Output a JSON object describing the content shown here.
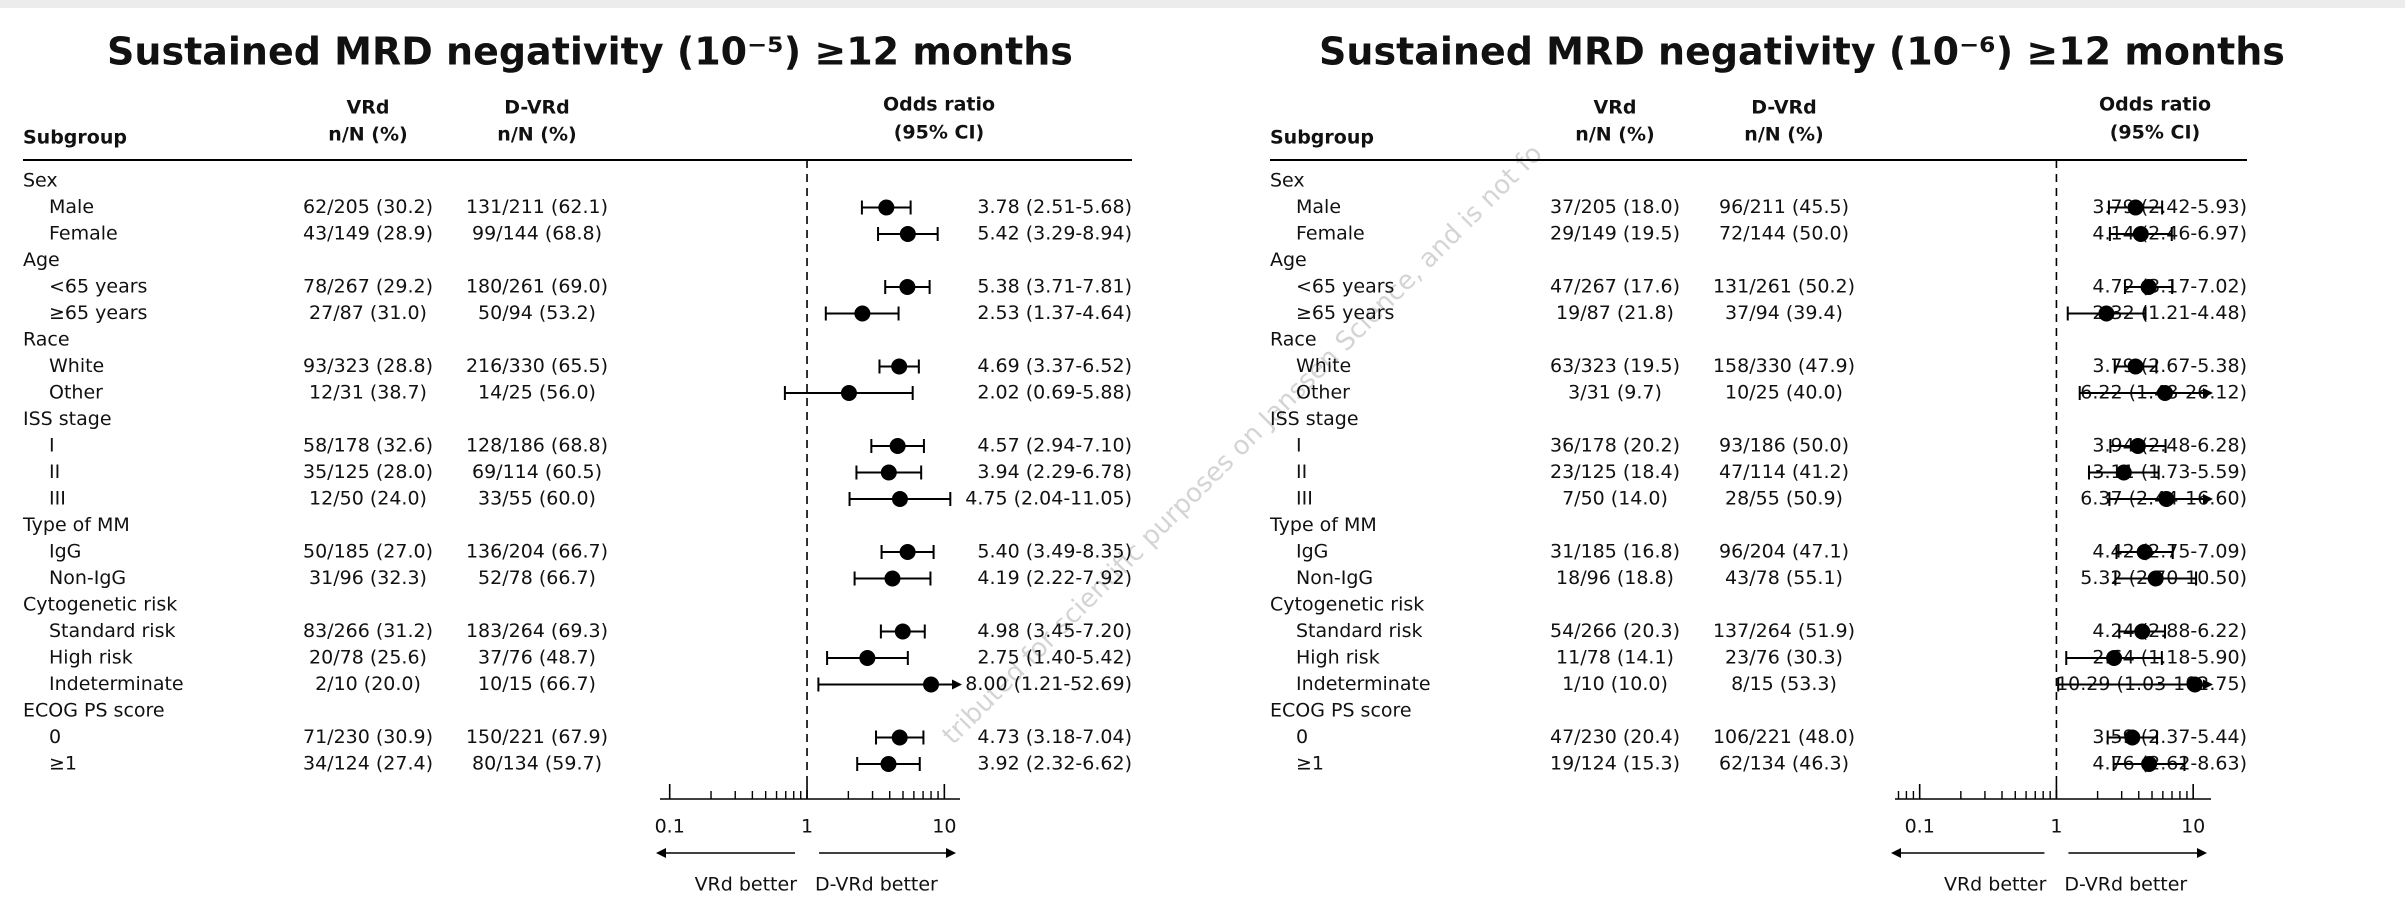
{
  "watermark": "tributed for scientific purposes on Janssen Science, and is not fo",
  "chart_data": [
    {
      "type": "forest",
      "title": "Sustained MRD negativity (10⁻⁵) ≥12 months",
      "headers": {
        "subgroup": "Subgroup",
        "arm1": "VRd",
        "arm1_sub": "n/N (%)",
        "arm2": "D-VRd",
        "arm2_sub": "n/N (%)",
        "effect": "Odds ratio",
        "effect_sub": "(95% CI)"
      },
      "categories": [
        "Sex",
        "Male",
        "Female",
        "Age",
        "<65 years",
        "≥65 years",
        "Race",
        "White",
        "Other",
        "ISS stage",
        "I",
        "II",
        "III",
        "Type of MM",
        "IgG",
        "Non-IgG",
        "Cytogenetic risk",
        "Standard risk",
        "High risk",
        "Indeterminate",
        "ECOG PS score",
        "0",
        "≥1"
      ],
      "arm1": [
        null,
        "62/205 (30.2)",
        "43/149 (28.9)",
        null,
        "78/267 (29.2)",
        "27/87 (31.0)",
        null,
        "93/323 (28.8)",
        "12/31 (38.7)",
        null,
        "58/178 (32.6)",
        "35/125 (28.0)",
        "12/50 (24.0)",
        null,
        "50/185 (27.0)",
        "31/96 (32.3)",
        null,
        "83/266 (31.2)",
        "20/78 (25.6)",
        "2/10 (20.0)",
        null,
        "71/230 (30.9)",
        "34/124 (27.4)"
      ],
      "arm2": [
        null,
        "131/211 (62.1)",
        "99/144 (68.8)",
        null,
        "180/261 (69.0)",
        "50/94 (53.2)",
        null,
        "216/330 (65.5)",
        "14/25 (56.0)",
        null,
        "128/186 (68.8)",
        "69/114 (60.5)",
        "33/55 (60.0)",
        null,
        "136/204 (66.7)",
        "52/78 (66.7)",
        null,
        "183/264 (69.3)",
        "37/76 (48.7)",
        "10/15 (66.7)",
        null,
        "150/221 (67.9)",
        "80/134 (59.7)"
      ],
      "values": [
        null,
        3.78,
        5.42,
        null,
        5.38,
        2.53,
        null,
        4.69,
        2.02,
        null,
        4.57,
        3.94,
        4.75,
        null,
        5.4,
        4.19,
        null,
        4.98,
        2.75,
        8.0,
        null,
        4.73,
        3.92
      ],
      "lower": [
        null,
        2.51,
        3.29,
        null,
        3.71,
        1.37,
        null,
        3.37,
        0.69,
        null,
        2.94,
        2.29,
        2.04,
        null,
        3.49,
        2.22,
        null,
        3.45,
        1.4,
        1.21,
        null,
        3.18,
        2.32
      ],
      "upper": [
        null,
        5.68,
        8.94,
        null,
        7.81,
        4.64,
        null,
        6.52,
        5.88,
        null,
        7.1,
        6.78,
        11.05,
        null,
        8.35,
        7.92,
        null,
        7.2,
        5.42,
        52.69,
        null,
        7.04,
        6.62
      ],
      "value_labels": [
        null,
        "3.78 (2.51-5.68)",
        "5.42 (3.29-8.94)",
        null,
        "5.38 (3.71-7.81)",
        "2.53 (1.37-4.64)",
        null,
        "4.69 (3.37-6.52)",
        "2.02 (0.69-5.88)",
        null,
        "4.57 (2.94-7.10)",
        "3.94 (2.29-6.78)",
        "4.75 (2.04-11.05)",
        null,
        "5.40 (3.49-8.35)",
        "4.19 (2.22-7.92)",
        null,
        "4.98 (3.45-7.20)",
        "2.75 (1.40-5.42)",
        "8.00 (1.21-52.69)",
        null,
        "4.73 (3.18-7.04)",
        "3.92 (2.32-6.62)"
      ],
      "xscale": "log",
      "xlim": [
        0.085,
        13
      ],
      "xticks": [
        0.1,
        1,
        10
      ],
      "xminor": [
        0.2,
        0.3,
        0.4,
        0.5,
        0.6,
        0.7,
        0.8,
        0.9,
        2,
        3,
        4,
        5,
        6,
        7,
        8,
        9
      ],
      "refline": 1,
      "left_label": "VRd better",
      "right_label": "D-VRd better",
      "color": "#000000"
    },
    {
      "type": "forest",
      "title": "Sustained MRD negativity (10⁻⁶) ≥12 months",
      "headers": {
        "subgroup": "Subgroup",
        "arm1": "VRd",
        "arm1_sub": "n/N (%)",
        "arm2": "D-VRd",
        "arm2_sub": "n/N (%)",
        "effect": "Odds ratio",
        "effect_sub": "(95% CI)"
      },
      "categories": [
        "Sex",
        "Male",
        "Female",
        "Age",
        "<65 years",
        "≥65 years",
        "Race",
        "White",
        "Other",
        "ISS stage",
        "I",
        "II",
        "III",
        "Type of MM",
        "IgG",
        "Non-IgG",
        "Cytogenetic risk",
        "Standard risk",
        "High risk",
        "Indeterminate",
        "ECOG PS score",
        "0",
        "≥1"
      ],
      "arm1": [
        null,
        "37/205 (18.0)",
        "29/149 (19.5)",
        null,
        "47/267 (17.6)",
        "19/87 (21.8)",
        null,
        "63/323 (19.5)",
        "3/31 (9.7)",
        null,
        "36/178 (20.2)",
        "23/125 (18.4)",
        "7/50 (14.0)",
        null,
        "31/185 (16.8)",
        "18/96 (18.8)",
        null,
        "54/266 (20.3)",
        "11/78 (14.1)",
        "1/10 (10.0)",
        null,
        "47/230 (20.4)",
        "19/124 (15.3)"
      ],
      "arm2": [
        null,
        "96/211 (45.5)",
        "72/144 (50.0)",
        null,
        "131/261 (50.2)",
        "37/94 (39.4)",
        null,
        "158/330 (47.9)",
        "10/25 (40.0)",
        null,
        "93/186 (50.0)",
        "47/114 (41.2)",
        "28/55 (50.9)",
        null,
        "96/204 (47.1)",
        "43/78 (55.1)",
        null,
        "137/264 (51.9)",
        "23/76 (30.3)",
        "8/15 (53.3)",
        null,
        "106/221 (48.0)",
        "62/134 (46.3)"
      ],
      "values": [
        null,
        3.79,
        4.14,
        null,
        4.72,
        2.32,
        null,
        3.79,
        6.22,
        null,
        3.94,
        3.11,
        6.37,
        null,
        4.42,
        5.32,
        null,
        4.24,
        2.64,
        10.29,
        null,
        3.59,
        4.76
      ],
      "lower": [
        null,
        2.42,
        2.46,
        null,
        3.17,
        1.21,
        null,
        2.67,
        1.48,
        null,
        2.48,
        1.73,
        2.44,
        null,
        2.75,
        2.7,
        null,
        2.88,
        1.18,
        1.03,
        null,
        2.37,
        2.62
      ],
      "upper": [
        null,
        5.93,
        6.97,
        null,
        7.02,
        4.48,
        null,
        5.38,
        26.12,
        null,
        6.28,
        5.59,
        16.6,
        null,
        7.09,
        10.5,
        null,
        6.22,
        5.9,
        102.75,
        null,
        5.44,
        8.63
      ],
      "value_labels": [
        null,
        "3.79 (2.42-5.93)",
        "4.14 (2.46-6.97)",
        null,
        "4.72 (3.17-7.02)",
        "2.32 (1.21-4.48)",
        null,
        "3.79 (2.67-5.38)",
        "6.22 (1.48-26.12)",
        null,
        "3.94 (2.48-6.28)",
        "3.11 (1.73-5.59)",
        "6.37 (2.44-16.60)",
        null,
        "4.42 (2.75-7.09)",
        "5.32 (2.70-10.50)",
        null,
        "4.24 (2.88-6.22)",
        "2.64 (1.18-5.90)",
        "10.29 (1.03-102.75)",
        null,
        "3.59 (2.37-5.44)",
        "4.76 (2.62-8.63)"
      ],
      "xscale": "log",
      "xlim": [
        0.066,
        13.5
      ],
      "xticks": [
        0.1,
        1,
        10
      ],
      "xminor": [
        0.07,
        0.08,
        0.09,
        0.2,
        0.3,
        0.4,
        0.5,
        0.6,
        0.7,
        0.8,
        0.9,
        2,
        3,
        4,
        5,
        6,
        7,
        8,
        9
      ],
      "refline": 1,
      "left_label": "VRd better",
      "right_label": "D-VRd better",
      "color": "#000000"
    }
  ]
}
